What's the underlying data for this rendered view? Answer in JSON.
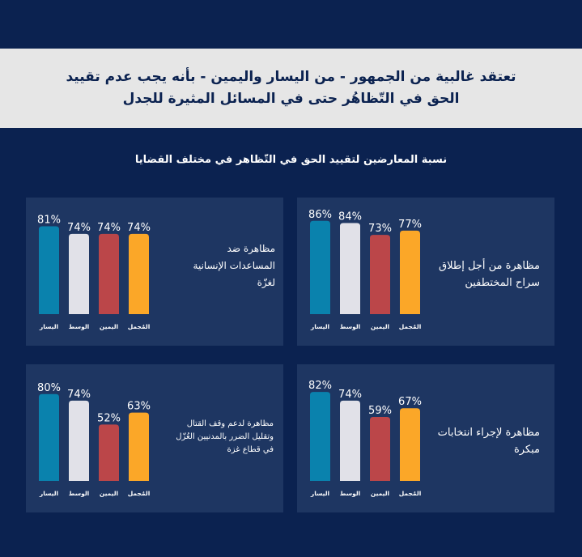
{
  "headline": {
    "line1": "تعتقد غالبية من الجمهور - من اليسار واليمين - بأنه يجب عدم تقييد",
    "line2": "الحق في التّظاهُر حتى في المسائل المثيرة للجدل"
  },
  "subtitle": "نسبة المعارضين لتقييد الحق في التّظاهر في مختلف القضايا",
  "colors": {
    "background": "#0b2250",
    "panel": "#1e3662",
    "left": "#0a82ad",
    "center": "#e1e1e8",
    "right": "#bb4649",
    "unsure": "#fba728"
  },
  "chart_data": [
    {
      "type": "bar",
      "label_lines": [
        "مظاهرة من أجل إطلاق",
        "سراح المختطفين"
      ],
      "categories": [
        "اليسار",
        "الوسط",
        "اليمين",
        "المُجمل"
      ],
      "values": [
        86,
        84,
        73,
        77
      ],
      "value_labels": [
        "86%",
        "84%",
        "73%",
        "77%"
      ],
      "ylim": [
        0,
        100
      ]
    },
    {
      "type": "bar",
      "label_lines": [
        "مظاهرة ضد",
        "المساعدات الإنسانية",
        "لغزّة"
      ],
      "categories": [
        "اليسار",
        "الوسط",
        "اليمين",
        "المُجمل"
      ],
      "values": [
        81,
        74,
        74,
        74
      ],
      "value_labels": [
        "81%",
        "74%",
        "74%",
        "74%"
      ],
      "ylim": [
        0,
        100
      ]
    },
    {
      "type": "bar",
      "label_lines": [
        "مظاهرة لإجراء انتخابات",
        "مبكرة"
      ],
      "categories": [
        "اليسار",
        "الوسط",
        "اليمين",
        "المُجمل"
      ],
      "values": [
        82,
        74,
        59,
        67
      ],
      "value_labels": [
        "82%",
        "74%",
        "59%",
        "67%"
      ],
      "ylim": [
        0,
        100
      ]
    },
    {
      "type": "bar",
      "label_lines": [
        "مظاهرة لدعم وقف القتال",
        "وتقليل الضرر بالمدنيين العُزّل",
        "في قطاع غزة"
      ],
      "categories": [
        "اليسار",
        "الوسط",
        "اليمين",
        "المُجمل"
      ],
      "values": [
        80,
        74,
        52,
        63
      ],
      "value_labels": [
        "80%",
        "74%",
        "52%",
        "63%"
      ],
      "ylim": [
        0,
        100
      ]
    }
  ]
}
